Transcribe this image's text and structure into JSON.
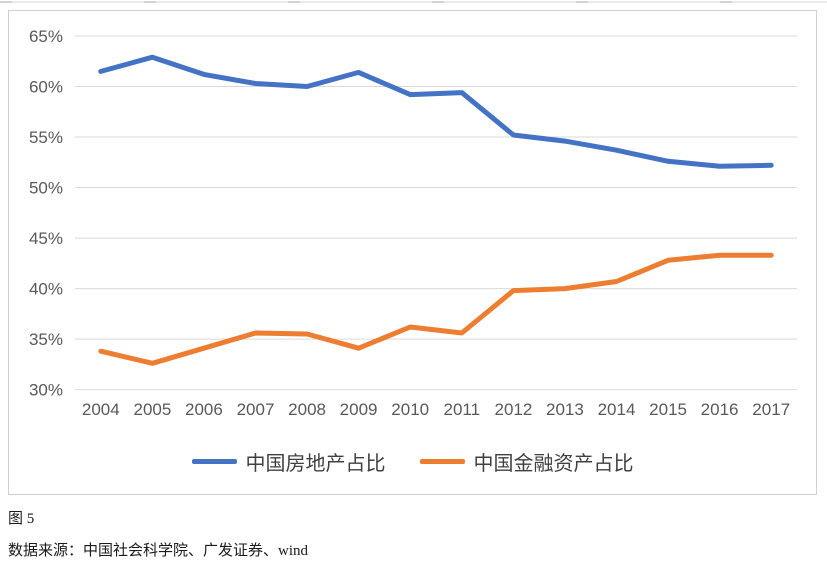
{
  "figure": {
    "caption": "图 5",
    "source": "数据来源：中国社会科学院、广发证券、wind"
  },
  "colors": {
    "grid": "#d9d9d9",
    "axis_text": "#595959",
    "chart_border": "#d0d0d0",
    "legend_text": "#404040",
    "series_blue": "#4472C4",
    "series_orange": "#ED7D31"
  },
  "chart_data": {
    "type": "line",
    "categories": [
      "2004",
      "2005",
      "2006",
      "2007",
      "2008",
      "2009",
      "2010",
      "2011",
      "2012",
      "2013",
      "2014",
      "2015",
      "2016",
      "2017"
    ],
    "series": [
      {
        "key": "china-real-estate-share",
        "name": "中国房地产占比",
        "color": "#4472C4",
        "values": [
          61.5,
          62.9,
          61.2,
          60.3,
          60.0,
          61.4,
          59.2,
          59.4,
          55.2,
          54.6,
          53.7,
          52.6,
          52.1,
          52.2
        ]
      },
      {
        "key": "china-financial-assets-share",
        "name": "中国金融资产占比",
        "color": "#ED7D31",
        "values": [
          33.8,
          32.6,
          34.1,
          35.6,
          35.5,
          34.1,
          36.2,
          35.6,
          39.8,
          40.0,
          40.7,
          42.8,
          43.3,
          43.3
        ]
      }
    ],
    "title": "",
    "xlabel": "",
    "ylabel": "",
    "ylim": [
      30,
      65
    ],
    "ytick_step": 5,
    "y_tick_labels": [
      "65%",
      "60%",
      "55%",
      "50%",
      "45%",
      "40%",
      "35%",
      "30%"
    ],
    "grid": true,
    "legend_position": "bottom"
  }
}
